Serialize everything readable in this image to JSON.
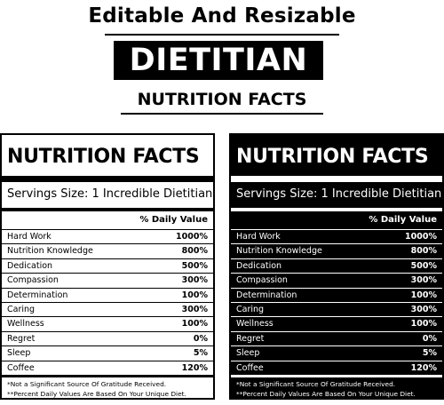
{
  "header": {
    "title": "Editable And Resizable",
    "badge": "DIETITIAN",
    "subtitle": "NUTRITION FACTS"
  },
  "panels": {
    "light": {
      "title": "NUTRITION FACTS",
      "servings": "Servings Size: 1 Incredible Dietitian",
      "daily_value_header": "% Daily Value",
      "rows": [
        {
          "name": "Hard Work",
          "value": "1000%"
        },
        {
          "name": "Nutrition Knowledge",
          "value": "800%"
        },
        {
          "name": "Dedication",
          "value": "500%"
        },
        {
          "name": "Compassion",
          "value": "300%"
        },
        {
          "name": "Determination",
          "value": "100%"
        },
        {
          "name": "Caring",
          "value": "300%"
        },
        {
          "name": "Wellness",
          "value": "100%"
        },
        {
          "name": "Regret",
          "value": "0%"
        },
        {
          "name": "Sleep",
          "value": "5%"
        },
        {
          "name": "Coffee",
          "value": "120%"
        }
      ],
      "note1": "*Not a Significant Source Of Gratitude Received.",
      "note2": "**Percent Daily Values Are Based On Your Unique Diet."
    },
    "dark": {
      "title": "NUTRITION FACTS",
      "servings": "Servings Size: 1 Incredible Dietitian",
      "daily_value_header": "% Daily Value",
      "rows": [
        {
          "name": "Hard Work",
          "value": "1000%"
        },
        {
          "name": "Nutrition Knowledge",
          "value": "800%"
        },
        {
          "name": "Dedication",
          "value": "500%"
        },
        {
          "name": "Compassion",
          "value": "300%"
        },
        {
          "name": "Determination",
          "value": "100%"
        },
        {
          "name": "Caring",
          "value": "300%"
        },
        {
          "name": "Wellness",
          "value": "100%"
        },
        {
          "name": "Regret",
          "value": "0%"
        },
        {
          "name": "Sleep",
          "value": "5%"
        },
        {
          "name": "Coffee",
          "value": "120%"
        }
      ],
      "note1": "*Not a Significant Source Of Gratitude Received.",
      "note2": "**Percent Daily Values Are Based On Your Unique Diet."
    }
  },
  "colors": {
    "ink": "#000000",
    "paper": "#ffffff"
  }
}
